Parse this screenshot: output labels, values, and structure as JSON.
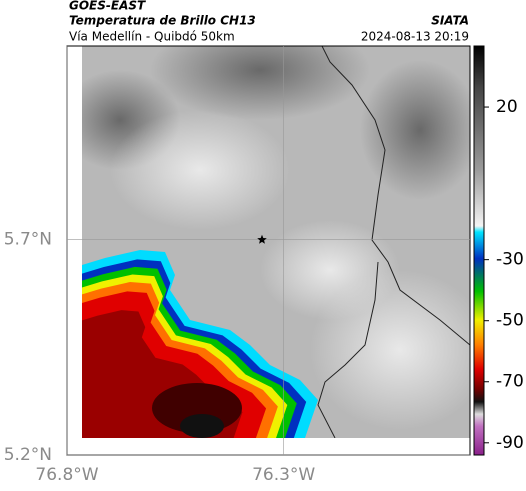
{
  "header": {
    "source": "GOES-EAST",
    "title": "Temperatura de Brillo CH13",
    "route": "Vía Medellín - Quibdó 50km",
    "org": "SIATA",
    "datetime": "2024-08-13 20:19"
  },
  "map": {
    "xlim": [
      -76.8,
      -75.87
    ],
    "ylim": [
      5.2,
      6.15
    ],
    "xticks": [
      {
        "value": -76.8,
        "label": "76.8°W"
      },
      {
        "value": -76.3,
        "label": "76.3°W"
      }
    ],
    "yticks": [
      {
        "value": 5.2,
        "label": "5.2°N"
      },
      {
        "value": 5.7,
        "label": "5.7°N"
      }
    ],
    "grid": true,
    "marker": {
      "lon": -76.35,
      "lat": 5.7
    }
  },
  "colorbar": {
    "lim": [
      40,
      -94
    ],
    "ticks": [
      20,
      -30,
      -50,
      -70,
      -90
    ]
  }
}
